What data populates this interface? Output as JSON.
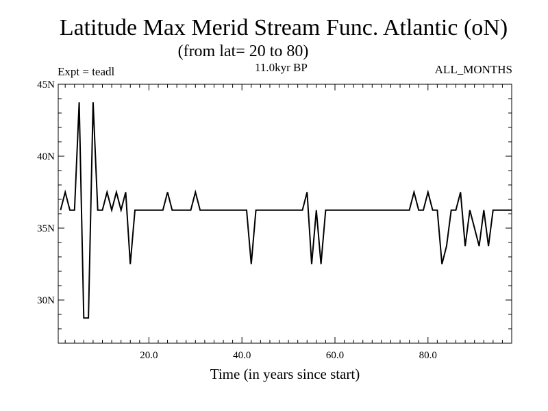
{
  "header": {
    "title": "Latitude Max Merid Stream Func. Atlantic (oN)",
    "subtitle": "(from lat= 20 to 80)",
    "expt": "Expt = teadl",
    "period": "11.0kyr BP",
    "months": "ALL_MONTHS"
  },
  "chart_data": {
    "type": "line",
    "title": "Latitude Max Merid Stream Func. Atlantic (oN)",
    "subtitle": "(from lat= 20 to 80)",
    "xlabel": "Time (in years since start)",
    "ylabel": "",
    "xlim": [
      0.5,
      98
    ],
    "ylim": [
      27,
      45
    ],
    "x_ticks": [
      20,
      40,
      60,
      80
    ],
    "x_tick_labels": [
      "20.0",
      "40.0",
      "60.0",
      "80.0"
    ],
    "y_ticks": [
      30,
      35,
      40,
      45
    ],
    "y_tick_labels": [
      "30N",
      "35N",
      "40N",
      "45N"
    ],
    "grid": false,
    "legend": "none",
    "line_color": "#000000",
    "series": [
      {
        "x": [
          1,
          2,
          3,
          4,
          5,
          6,
          7,
          8,
          9,
          10,
          11,
          12,
          13,
          14,
          15,
          16,
          17,
          18,
          19,
          20,
          21,
          22,
          23,
          24,
          25,
          26,
          27,
          28,
          29,
          30,
          31,
          32,
          33,
          34,
          35,
          36,
          37,
          38,
          39,
          40,
          41,
          42,
          43,
          44,
          45,
          46,
          47,
          48,
          49,
          50,
          51,
          52,
          53,
          54,
          55,
          56,
          57,
          58,
          59,
          60,
          61,
          62,
          63,
          64,
          65,
          66,
          67,
          68,
          69,
          70,
          71,
          72,
          73,
          74,
          75,
          76,
          77,
          78,
          79,
          80,
          81,
          82,
          83,
          84,
          85,
          86,
          87,
          88,
          89,
          90,
          91,
          92,
          93,
          94,
          95,
          96,
          97,
          98
        ],
        "y": [
          36.25,
          37.5,
          36.25,
          36.25,
          43.75,
          28.75,
          28.75,
          43.75,
          36.25,
          36.25,
          37.5,
          36.25,
          37.5,
          36.25,
          37.5,
          32.5,
          36.25,
          36.25,
          36.25,
          36.25,
          36.25,
          36.25,
          36.25,
          37.5,
          36.25,
          36.25,
          36.25,
          36.25,
          36.25,
          37.5,
          36.25,
          36.25,
          36.25,
          36.25,
          36.25,
          36.25,
          36.25,
          36.25,
          36.25,
          36.25,
          36.25,
          32.5,
          36.25,
          36.25,
          36.25,
          36.25,
          36.25,
          36.25,
          36.25,
          36.25,
          36.25,
          36.25,
          36.25,
          37.5,
          32.5,
          36.25,
          32.5,
          36.25,
          36.25,
          36.25,
          36.25,
          36.25,
          36.25,
          36.25,
          36.25,
          36.25,
          36.25,
          36.25,
          36.25,
          36.25,
          36.25,
          36.25,
          36.25,
          36.25,
          36.25,
          36.25,
          37.5,
          36.25,
          36.25,
          37.5,
          36.25,
          36.25,
          32.5,
          33.75,
          36.25,
          36.25,
          37.5,
          33.75,
          36.25,
          35,
          33.75,
          36.25,
          33.75,
          36.25,
          36.25,
          36.25,
          36.25,
          36.25
        ]
      }
    ]
  }
}
